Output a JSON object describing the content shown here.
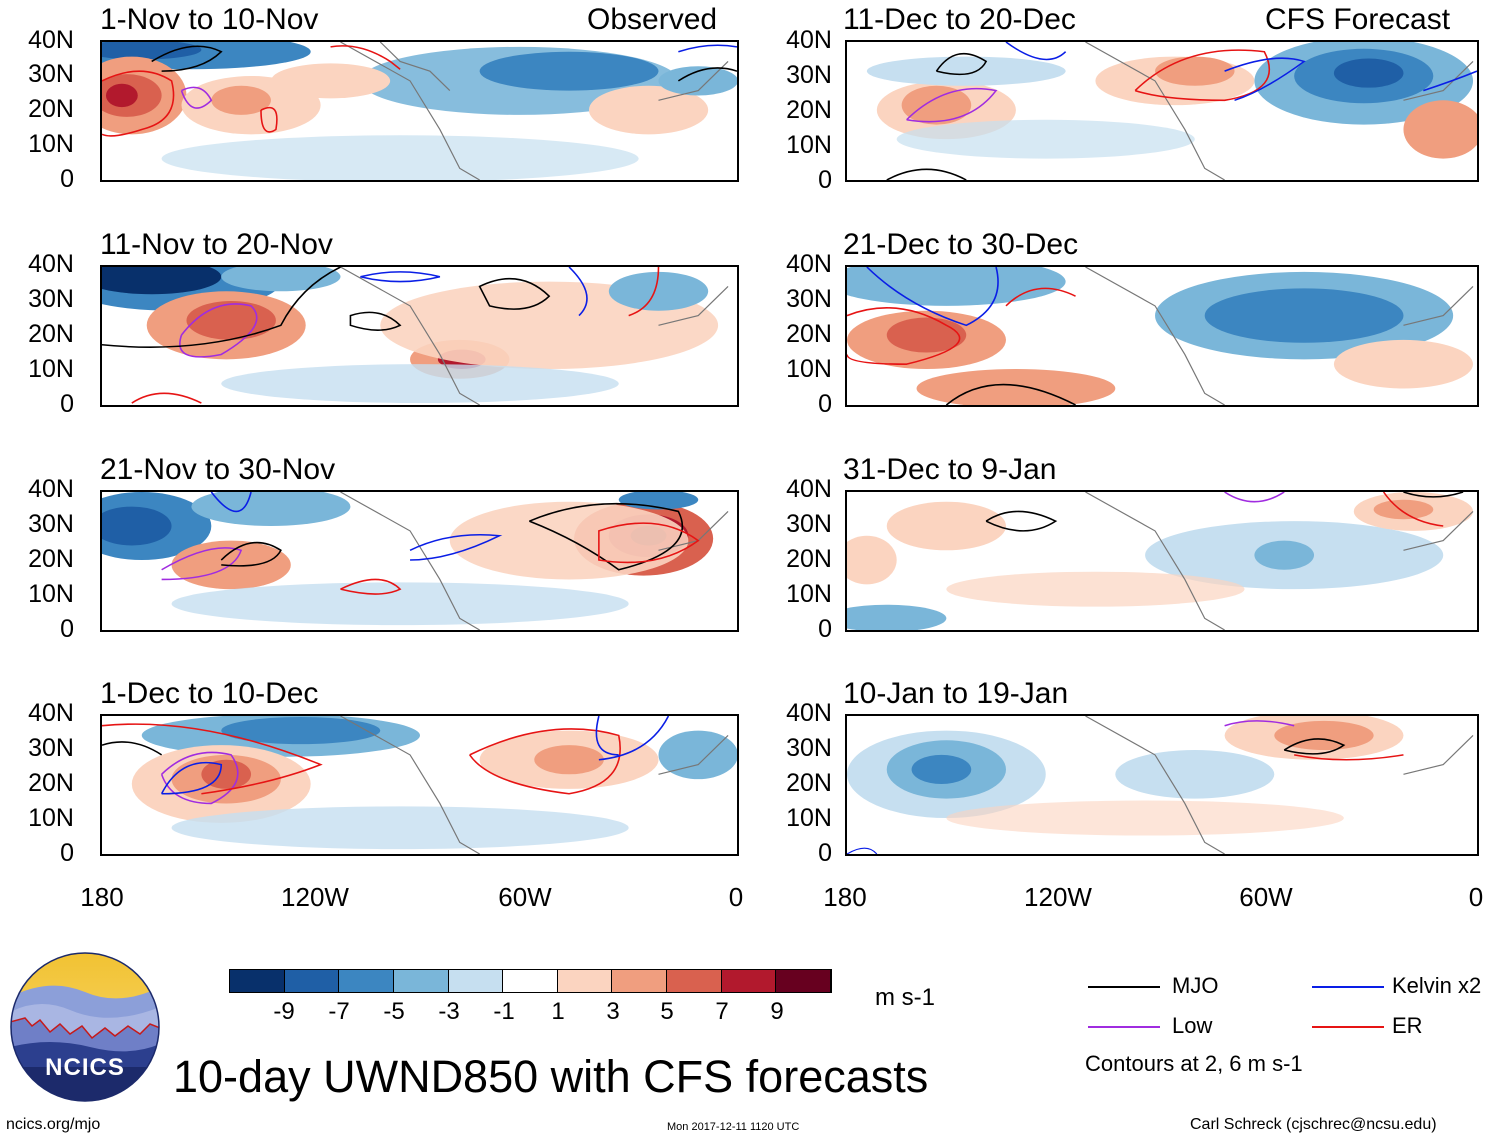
{
  "left_column": {
    "panels": [
      {
        "title": "1-Nov to 10-Nov",
        "tag": "Observed"
      },
      {
        "title": "11-Nov to 20-Nov"
      },
      {
        "title": "21-Nov to 30-Nov"
      },
      {
        "title": "1-Dec to 10-Dec"
      }
    ],
    "lon_labels": [
      "180",
      "120W",
      "60W",
      "0"
    ]
  },
  "right_column": {
    "panels": [
      {
        "title": "11-Dec to 20-Dec",
        "tag": "CFS Forecast"
      },
      {
        "title": "21-Dec to 30-Dec"
      },
      {
        "title": "31-Dec to 9-Jan"
      },
      {
        "title": "10-Jan to 19-Jan"
      }
    ],
    "lon_labels": [
      "180",
      "120W",
      "60W",
      "0"
    ]
  },
  "lat_labels": [
    "40N",
    "30N",
    "20N",
    "10N",
    "0"
  ],
  "colorbar": {
    "labels": [
      "-9",
      "-7",
      "-5",
      "-3",
      "-1",
      "1",
      "3",
      "5",
      "7",
      "9"
    ],
    "units": "m s-1",
    "colors": [
      "#08306b",
      "#1f5fa6",
      "#3c86c1",
      "#7ab6d9",
      "#c6dff0",
      "#ffffff",
      "#fbd4c0",
      "#f09e7f",
      "#d9614f",
      "#b2192d",
      "#67001f"
    ]
  },
  "legend": {
    "items": [
      {
        "label": "MJO",
        "color": "#000000"
      },
      {
        "label": "Kelvin x2",
        "color": "#0a1ee6"
      },
      {
        "label": "Low",
        "color": "#a02ce0"
      },
      {
        "label": "ER",
        "color": "#e61414"
      }
    ],
    "note": "Contours at 2, 6 m s-1"
  },
  "logo": {
    "text": "NCICS"
  },
  "footer": {
    "title": "10-day UWND850 with CFS forecasts",
    "url": "ncics.org/mjo",
    "timestamp": "Mon 2017-12-11 1120 UTC",
    "author": "Carl Schreck (cjschrec@ncsu.edu)"
  }
}
